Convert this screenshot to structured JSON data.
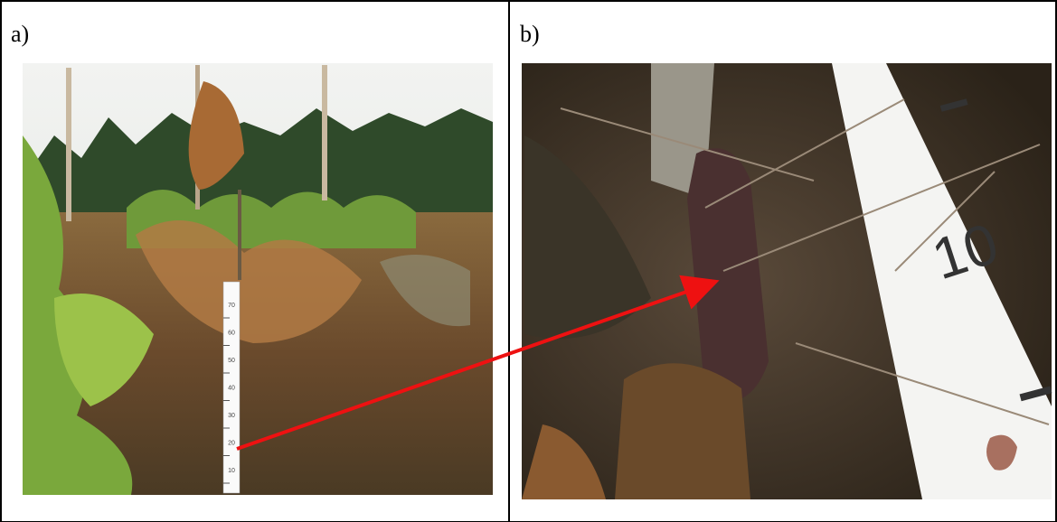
{
  "panels": [
    {
      "label": "a)",
      "ruler_labels": [
        "70",
        "60",
        "50",
        "40",
        "30",
        "20",
        "10"
      ]
    },
    {
      "label": "b)",
      "ruler_label": "10"
    }
  ]
}
